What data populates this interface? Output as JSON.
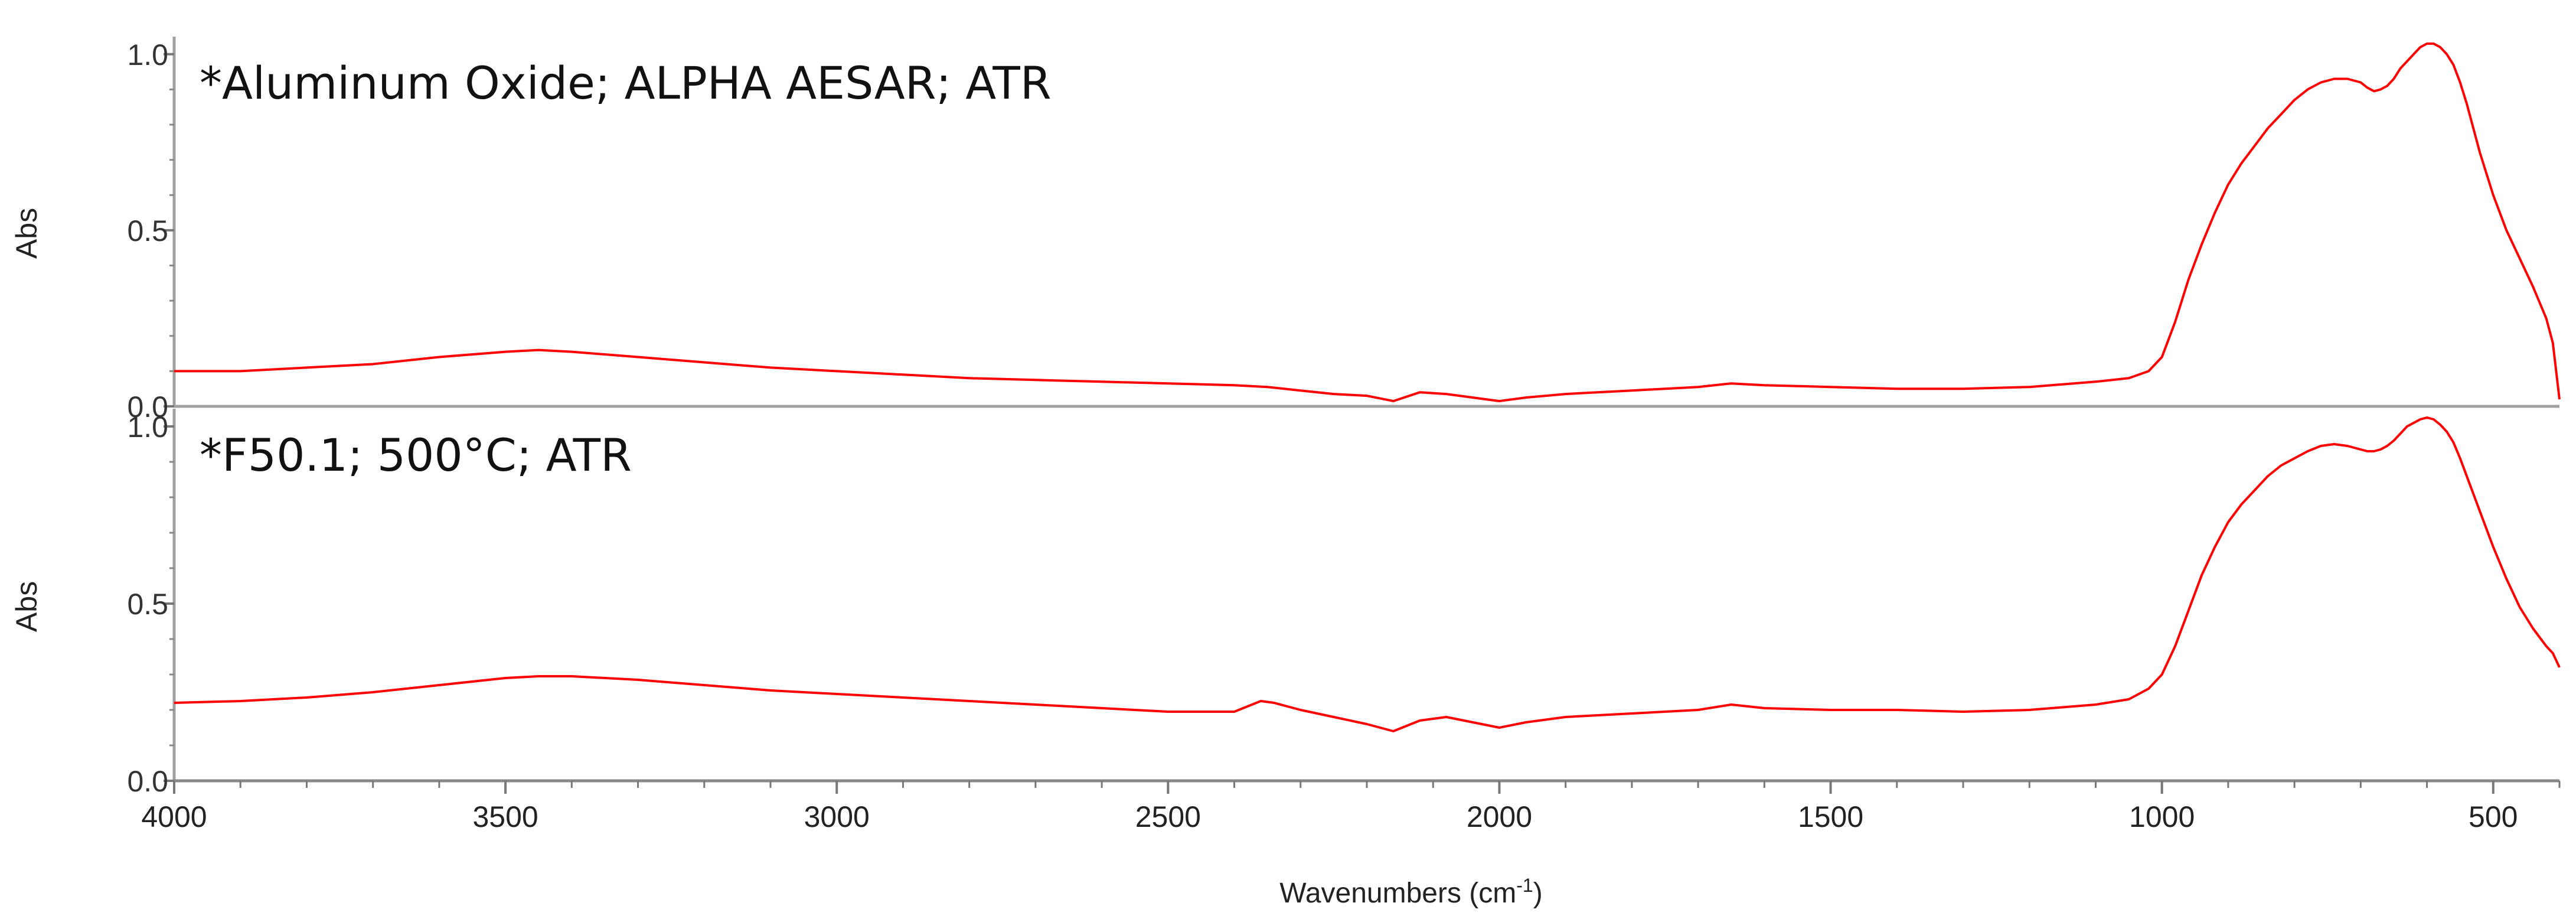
{
  "chart_data": {
    "type": "line",
    "xlabel_main": "Wavenumbers (cm",
    "xlabel_sup": "-1",
    "xlabel_tail": ")",
    "xlim": [
      4000,
      400
    ],
    "x_ticks": [
      4000,
      3500,
      3000,
      2500,
      2000,
      1500,
      1000,
      500
    ],
    "x_tick_labels": [
      "4000",
      "3500",
      "3000",
      "2500",
      "2000",
      "1500",
      "1000",
      "500"
    ],
    "series_color": "#ff0000",
    "panels": [
      {
        "title": "*Aluminum Oxide; ALPHA AESAR; ATR",
        "ylabel": "Abs",
        "ylim": [
          0.0,
          1.05
        ],
        "y_ticks": [
          0.0,
          0.5,
          1.0
        ],
        "y_tick_labels": [
          "0.0",
          "0.5",
          "1.0"
        ],
        "x": [
          4000,
          3900,
          3800,
          3700,
          3600,
          3500,
          3450,
          3400,
          3300,
          3200,
          3100,
          3000,
          2900,
          2800,
          2700,
          2600,
          2500,
          2400,
          2350,
          2300,
          2250,
          2200,
          2160,
          2120,
          2080,
          2040,
          2000,
          1960,
          1900,
          1800,
          1700,
          1650,
          1600,
          1500,
          1400,
          1300,
          1200,
          1100,
          1050,
          1020,
          1000,
          980,
          960,
          940,
          920,
          900,
          880,
          860,
          840,
          820,
          800,
          780,
          760,
          740,
          720,
          700,
          690,
          680,
          670,
          660,
          650,
          640,
          630,
          620,
          610,
          600,
          590,
          580,
          570,
          560,
          550,
          540,
          520,
          500,
          480,
          460,
          440,
          420,
          410,
          405,
          400
        ],
        "values": [
          0.1,
          0.1,
          0.11,
          0.12,
          0.14,
          0.155,
          0.16,
          0.155,
          0.14,
          0.125,
          0.11,
          0.1,
          0.09,
          0.08,
          0.075,
          0.07,
          0.065,
          0.06,
          0.055,
          0.045,
          0.035,
          0.03,
          0.015,
          0.04,
          0.035,
          0.025,
          0.015,
          0.025,
          0.035,
          0.045,
          0.055,
          0.065,
          0.06,
          0.055,
          0.05,
          0.05,
          0.055,
          0.07,
          0.08,
          0.1,
          0.14,
          0.24,
          0.36,
          0.46,
          0.55,
          0.63,
          0.69,
          0.74,
          0.79,
          0.83,
          0.87,
          0.9,
          0.92,
          0.93,
          0.93,
          0.92,
          0.905,
          0.895,
          0.9,
          0.91,
          0.93,
          0.96,
          0.98,
          1.0,
          1.02,
          1.03,
          1.03,
          1.02,
          1.0,
          0.97,
          0.92,
          0.86,
          0.72,
          0.6,
          0.5,
          0.42,
          0.34,
          0.25,
          0.18,
          0.1,
          0.02
        ]
      },
      {
        "title": "*F50.1; 500°C; ATR",
        "ylabel": "Abs",
        "ylim": [
          0.0,
          1.05
        ],
        "y_ticks": [
          0.0,
          0.5,
          1.0
        ],
        "y_tick_labels": [
          "0.0",
          "0.5",
          "1.0"
        ],
        "x": [
          4000,
          3900,
          3800,
          3700,
          3600,
          3500,
          3450,
          3400,
          3300,
          3200,
          3100,
          3000,
          2900,
          2800,
          2700,
          2600,
          2500,
          2400,
          2360,
          2340,
          2300,
          2250,
          2200,
          2160,
          2120,
          2080,
          2040,
          2000,
          1960,
          1900,
          1800,
          1700,
          1650,
          1600,
          1500,
          1400,
          1300,
          1200,
          1100,
          1050,
          1020,
          1000,
          980,
          960,
          940,
          920,
          900,
          880,
          860,
          840,
          820,
          800,
          780,
          760,
          740,
          720,
          700,
          690,
          680,
          670,
          660,
          650,
          640,
          630,
          620,
          610,
          600,
          590,
          580,
          570,
          560,
          550,
          540,
          520,
          500,
          480,
          460,
          440,
          420,
          410,
          405,
          400
        ],
        "values": [
          0.22,
          0.225,
          0.235,
          0.25,
          0.27,
          0.29,
          0.295,
          0.295,
          0.285,
          0.27,
          0.255,
          0.245,
          0.235,
          0.225,
          0.215,
          0.205,
          0.195,
          0.195,
          0.225,
          0.22,
          0.2,
          0.18,
          0.16,
          0.14,
          0.17,
          0.18,
          0.165,
          0.15,
          0.165,
          0.18,
          0.19,
          0.2,
          0.215,
          0.205,
          0.2,
          0.2,
          0.195,
          0.2,
          0.215,
          0.23,
          0.26,
          0.3,
          0.38,
          0.48,
          0.58,
          0.66,
          0.73,
          0.78,
          0.82,
          0.86,
          0.89,
          0.91,
          0.93,
          0.945,
          0.95,
          0.945,
          0.935,
          0.93,
          0.93,
          0.935,
          0.945,
          0.96,
          0.98,
          1.0,
          1.01,
          1.02,
          1.025,
          1.02,
          1.005,
          0.985,
          0.955,
          0.91,
          0.86,
          0.76,
          0.66,
          0.57,
          0.49,
          0.43,
          0.38,
          0.36,
          0.34,
          0.32
        ]
      }
    ]
  }
}
